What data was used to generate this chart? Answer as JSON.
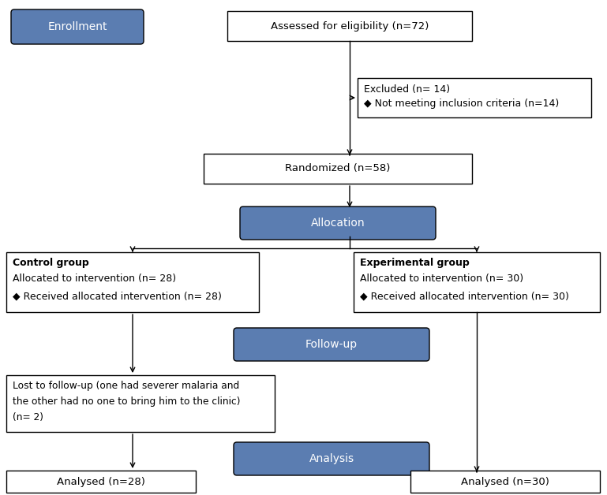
{
  "bg_color": "#ffffff",
  "blue_fill": "#5b7db1",
  "blue_text": "#ffffff",
  "black": "#000000",
  "white": "#ffffff",
  "enrollment": {
    "text": "Enrollment"
  },
  "eligibility": {
    "text": "Assessed for eligibility (n=72)"
  },
  "excluded_line1": "Excluded (n= 14)",
  "excluded_line2": "◆ Not meeting inclusion criteria (n=14)",
  "randomized": {
    "text": "Randomized (n=58)"
  },
  "allocation": {
    "text": "Allocation"
  },
  "control_line1": "Control group",
  "control_line2": "Allocated to intervention (n= 28)",
  "control_line3": "◆ Received allocated intervention (n= 28)",
  "exp_line1": "Experimental group",
  "exp_line2": "Allocated to intervention (n= 30)",
  "exp_line3": "◆ Received allocated intervention (n= 30)",
  "followup": {
    "text": "Follow-up"
  },
  "lost_line1": "Lost to follow-up (one had severer malaria and",
  "lost_line2": "the other had no one to bring him to the clinic)",
  "lost_line3": "(n= 2)",
  "analysis": {
    "text": "Analysis"
  },
  "analysed_left": {
    "text": "Analysed (n=28)"
  },
  "analysed_right": {
    "text": "Analysed (n=30)"
  }
}
